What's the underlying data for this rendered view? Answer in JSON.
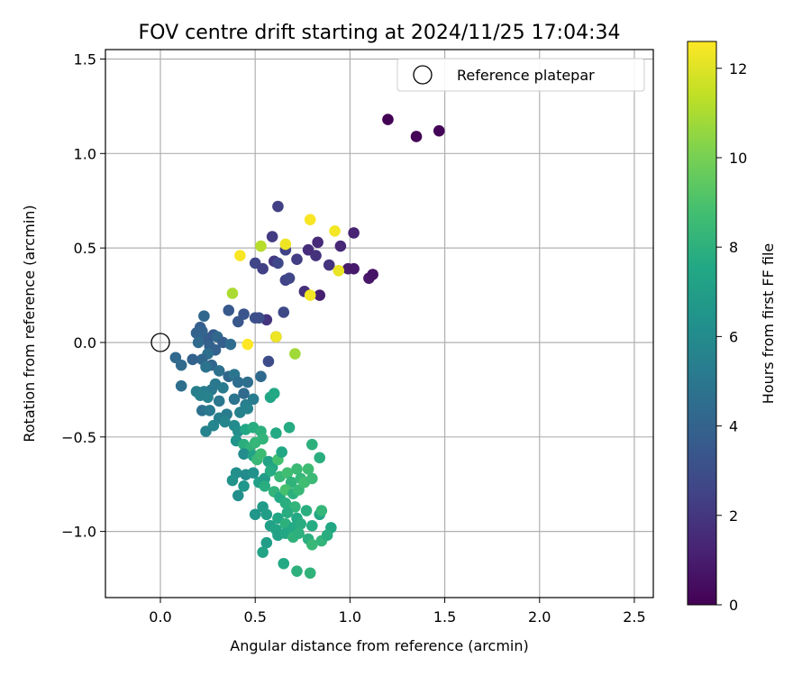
{
  "chart_data": {
    "type": "scatter",
    "title": "FOV centre drift starting at 2024/11/25 17:04:34",
    "xlabel": "Angular distance from reference (arcmin)",
    "ylabel": "Rotation from reference (arcmin)",
    "xlim": [
      -0.29,
      2.6
    ],
    "ylim": [
      -1.35,
      1.55
    ],
    "xticks": [
      0.0,
      0.5,
      1.0,
      1.5,
      2.0,
      2.5
    ],
    "xtick_labels": [
      "0.0",
      "0.5",
      "1.0",
      "1.5",
      "2.0",
      "2.5"
    ],
    "yticks": [
      -1.0,
      -0.5,
      0.0,
      0.5,
      1.0,
      1.5
    ],
    "ytick_labels": [
      "−1.0",
      "−0.5",
      "0.0",
      "0.5",
      "1.0",
      "1.5"
    ],
    "grid": true,
    "legend": {
      "position": "top-right",
      "entries": [
        "Reference platepar"
      ]
    },
    "reference_point": {
      "x": 0.0,
      "y": 0.0
    },
    "colorbar": {
      "label": "Hours from first FF file",
      "min": 0,
      "max": 12.6,
      "colormap": "viridis",
      "ticks": [
        0,
        2,
        4,
        6,
        8,
        10,
        12
      ],
      "tick_labels": [
        "0",
        "2",
        "4",
        "6",
        "8",
        "10",
        "12"
      ]
    },
    "points": [
      {
        "x": 1.2,
        "y": 1.18,
        "c": 0.05
      },
      {
        "x": 1.35,
        "y": 1.09,
        "c": 0.1
      },
      {
        "x": 1.47,
        "y": 1.12,
        "c": 0.15
      },
      {
        "x": 1.02,
        "y": 0.58,
        "c": 1.2
      },
      {
        "x": 0.95,
        "y": 0.51,
        "c": 1.4
      },
      {
        "x": 0.83,
        "y": 0.53,
        "c": 1.5
      },
      {
        "x": 0.78,
        "y": 0.49,
        "c": 1.6
      },
      {
        "x": 0.82,
        "y": 0.46,
        "c": 1.8
      },
      {
        "x": 0.89,
        "y": 0.41,
        "c": 1.9
      },
      {
        "x": 0.99,
        "y": 0.39,
        "c": 1.0
      },
      {
        "x": 1.02,
        "y": 0.39,
        "c": 0.9
      },
      {
        "x": 1.1,
        "y": 0.34,
        "c": 0.8
      },
      {
        "x": 1.12,
        "y": 0.36,
        "c": 0.7
      },
      {
        "x": 0.84,
        "y": 0.25,
        "c": 1.1
      },
      {
        "x": 0.76,
        "y": 0.27,
        "c": 1.7
      },
      {
        "x": 0.62,
        "y": 0.72,
        "c": 2.4
      },
      {
        "x": 0.59,
        "y": 0.56,
        "c": 2.2
      },
      {
        "x": 0.66,
        "y": 0.49,
        "c": 2.5
      },
      {
        "x": 0.72,
        "y": 0.44,
        "c": 2.3
      },
      {
        "x": 0.5,
        "y": 0.42,
        "c": 2.6
      },
      {
        "x": 0.54,
        "y": 0.39,
        "c": 2.4
      },
      {
        "x": 0.6,
        "y": 0.43,
        "c": 2.1
      },
      {
        "x": 0.62,
        "y": 0.42,
        "c": 2.7
      },
      {
        "x": 0.66,
        "y": 0.33,
        "c": 2.5
      },
      {
        "x": 0.68,
        "y": 0.34,
        "c": 2.6
      },
      {
        "x": 0.65,
        "y": 0.16,
        "c": 2.8
      },
      {
        "x": 0.56,
        "y": 0.12,
        "c": 1.9
      },
      {
        "x": 0.61,
        "y": 0.03,
        "c": 3.2
      },
      {
        "x": 0.57,
        "y": -0.1,
        "c": 2.9
      },
      {
        "x": 0.5,
        "y": 0.13,
        "c": 3.1
      },
      {
        "x": 0.52,
        "y": 0.13,
        "c": 3.0
      },
      {
        "x": 0.44,
        "y": 0.15,
        "c": 3.3
      },
      {
        "x": 0.41,
        "y": 0.11,
        "c": 3.4
      },
      {
        "x": 0.36,
        "y": 0.17,
        "c": 3.5
      },
      {
        "x": 0.21,
        "y": 0.08,
        "c": 3.8
      },
      {
        "x": 0.23,
        "y": 0.14,
        "c": 4.2
      },
      {
        "x": 0.22,
        "y": 0.06,
        "c": 3.9
      },
      {
        "x": 0.19,
        "y": 0.05,
        "c": 4.0
      },
      {
        "x": 0.23,
        "y": 0.03,
        "c": 4.1
      },
      {
        "x": 0.25,
        "y": 0.01,
        "c": 3.7
      },
      {
        "x": 0.28,
        "y": 0.04,
        "c": 3.6
      },
      {
        "x": 0.3,
        "y": 0.03,
        "c": 4.3
      },
      {
        "x": 0.2,
        "y": 0.0,
        "c": 4.4
      },
      {
        "x": 0.26,
        "y": -0.02,
        "c": 4.0
      },
      {
        "x": 0.29,
        "y": -0.04,
        "c": 3.9
      },
      {
        "x": 0.33,
        "y": 0.0,
        "c": 3.8
      },
      {
        "x": 0.37,
        "y": -0.01,
        "c": 4.5
      },
      {
        "x": 0.25,
        "y": -0.06,
        "c": 4.6
      },
      {
        "x": 0.22,
        "y": -0.09,
        "c": 4.2
      },
      {
        "x": 0.17,
        "y": -0.09,
        "c": 4.0
      },
      {
        "x": 0.08,
        "y": -0.08,
        "c": 4.3
      },
      {
        "x": 0.11,
        "y": -0.12,
        "c": 4.4
      },
      {
        "x": 0.27,
        "y": -0.12,
        "c": 4.1
      },
      {
        "x": 0.31,
        "y": -0.15,
        "c": 4.7
      },
      {
        "x": 0.24,
        "y": -0.13,
        "c": 4.8
      },
      {
        "x": 0.36,
        "y": -0.18,
        "c": 4.2
      },
      {
        "x": 0.39,
        "y": -0.17,
        "c": 4.9
      },
      {
        "x": 0.41,
        "y": -0.21,
        "c": 4.5
      },
      {
        "x": 0.46,
        "y": -0.21,
        "c": 4.6
      },
      {
        "x": 0.53,
        "y": -0.18,
        "c": 4.3
      },
      {
        "x": 0.29,
        "y": -0.22,
        "c": 5.0
      },
      {
        "x": 0.33,
        "y": -0.24,
        "c": 5.2
      },
      {
        "x": 0.27,
        "y": -0.25,
        "c": 5.1
      },
      {
        "x": 0.23,
        "y": -0.26,
        "c": 5.3
      },
      {
        "x": 0.19,
        "y": -0.26,
        "c": 5.4
      },
      {
        "x": 0.21,
        "y": -0.28,
        "c": 5.5
      },
      {
        "x": 0.25,
        "y": -0.29,
        "c": 5.6
      },
      {
        "x": 0.11,
        "y": -0.23,
        "c": 4.6
      },
      {
        "x": 0.31,
        "y": -0.31,
        "c": 5.0
      },
      {
        "x": 0.44,
        "y": -0.27,
        "c": 4.4
      },
      {
        "x": 0.39,
        "y": -0.3,
        "c": 4.8
      },
      {
        "x": 0.49,
        "y": -0.3,
        "c": 5.2
      },
      {
        "x": 0.45,
        "y": -0.33,
        "c": 5.3
      },
      {
        "x": 0.22,
        "y": -0.36,
        "c": 4.7
      },
      {
        "x": 0.26,
        "y": -0.36,
        "c": 5.1
      },
      {
        "x": 0.31,
        "y": -0.4,
        "c": 5.4
      },
      {
        "x": 0.35,
        "y": -0.38,
        "c": 5.2
      },
      {
        "x": 0.42,
        "y": -0.37,
        "c": 5.5
      },
      {
        "x": 0.46,
        "y": -0.35,
        "c": 5.6
      },
      {
        "x": 0.58,
        "y": -0.29,
        "c": 7.4
      },
      {
        "x": 0.6,
        "y": -0.27,
        "c": 7.6
      },
      {
        "x": 0.28,
        "y": -0.44,
        "c": 5.8
      },
      {
        "x": 0.34,
        "y": -0.42,
        "c": 5.7
      },
      {
        "x": 0.39,
        "y": -0.44,
        "c": 6.0
      },
      {
        "x": 0.24,
        "y": -0.47,
        "c": 5.6
      },
      {
        "x": 0.41,
        "y": -0.47,
        "c": 6.2
      },
      {
        "x": 0.45,
        "y": -0.46,
        "c": 7.5
      },
      {
        "x": 0.49,
        "y": -0.45,
        "c": 7.8
      },
      {
        "x": 0.53,
        "y": -0.47,
        "c": 8.0
      },
      {
        "x": 0.4,
        "y": -0.52,
        "c": 6.5
      },
      {
        "x": 0.44,
        "y": -0.54,
        "c": 7.9
      },
      {
        "x": 0.47,
        "y": -0.56,
        "c": 8.1
      },
      {
        "x": 0.5,
        "y": -0.53,
        "c": 8.3
      },
      {
        "x": 0.54,
        "y": -0.51,
        "c": 8.2
      },
      {
        "x": 0.61,
        "y": -0.48,
        "c": 7.6
      },
      {
        "x": 0.68,
        "y": -0.45,
        "c": 7.7
      },
      {
        "x": 0.44,
        "y": -0.59,
        "c": 6.1
      },
      {
        "x": 0.49,
        "y": -0.6,
        "c": 7.2
      },
      {
        "x": 0.51,
        "y": -0.62,
        "c": 8.4
      },
      {
        "x": 0.53,
        "y": -0.59,
        "c": 8.6
      },
      {
        "x": 0.57,
        "y": -0.63,
        "c": 7.3
      },
      {
        "x": 0.59,
        "y": -0.66,
        "c": 7.4
      },
      {
        "x": 0.62,
        "y": -0.62,
        "c": 8.8
      },
      {
        "x": 0.64,
        "y": -0.58,
        "c": 7.5
      },
      {
        "x": 0.8,
        "y": -0.54,
        "c": 8.0
      },
      {
        "x": 0.84,
        "y": -0.61,
        "c": 7.9
      },
      {
        "x": 0.4,
        "y": -0.69,
        "c": 6.2
      },
      {
        "x": 0.45,
        "y": -0.7,
        "c": 6.0
      },
      {
        "x": 0.49,
        "y": -0.69,
        "c": 6.3
      },
      {
        "x": 0.52,
        "y": -0.74,
        "c": 7.1
      },
      {
        "x": 0.55,
        "y": -0.72,
        "c": 6.9
      },
      {
        "x": 0.58,
        "y": -0.68,
        "c": 7.7
      },
      {
        "x": 0.63,
        "y": -0.71,
        "c": 8.4
      },
      {
        "x": 0.67,
        "y": -0.69,
        "c": 8.7
      },
      {
        "x": 0.69,
        "y": -0.74,
        "c": 8.1
      },
      {
        "x": 0.72,
        "y": -0.67,
        "c": 8.5
      },
      {
        "x": 0.74,
        "y": -0.72,
        "c": 8.3
      },
      {
        "x": 0.78,
        "y": -0.67,
        "c": 8.6
      },
      {
        "x": 0.38,
        "y": -0.73,
        "c": 6.4
      },
      {
        "x": 0.44,
        "y": -0.76,
        "c": 6.6
      },
      {
        "x": 0.41,
        "y": -0.81,
        "c": 6.2
      },
      {
        "x": 0.55,
        "y": -0.76,
        "c": 7.8
      },
      {
        "x": 0.6,
        "y": -0.79,
        "c": 8.2
      },
      {
        "x": 0.63,
        "y": -0.82,
        "c": 7.6
      },
      {
        "x": 0.66,
        "y": -0.78,
        "c": 8.9
      },
      {
        "x": 0.7,
        "y": -0.8,
        "c": 8.0
      },
      {
        "x": 0.73,
        "y": -0.78,
        "c": 8.4
      },
      {
        "x": 0.76,
        "y": -0.74,
        "c": 8.7
      },
      {
        "x": 0.8,
        "y": -0.72,
        "c": 8.5
      },
      {
        "x": 0.66,
        "y": -0.85,
        "c": 7.9
      },
      {
        "x": 0.71,
        "y": -0.87,
        "c": 8.2
      },
      {
        "x": 0.54,
        "y": -0.87,
        "c": 6.8
      },
      {
        "x": 0.56,
        "y": -0.91,
        "c": 7.0
      },
      {
        "x": 0.5,
        "y": -0.91,
        "c": 6.6
      },
      {
        "x": 0.62,
        "y": -0.93,
        "c": 7.5
      },
      {
        "x": 0.67,
        "y": -0.9,
        "c": 7.8
      },
      {
        "x": 0.72,
        "y": -0.93,
        "c": 7.6
      },
      {
        "x": 0.77,
        "y": -0.89,
        "c": 7.9
      },
      {
        "x": 0.84,
        "y": -0.91,
        "c": 7.4
      },
      {
        "x": 0.85,
        "y": -0.89,
        "c": 8.3
      },
      {
        "x": 0.58,
        "y": -0.97,
        "c": 7.1
      },
      {
        "x": 0.61,
        "y": -0.99,
        "c": 7.4
      },
      {
        "x": 0.66,
        "y": -0.96,
        "c": 8.0
      },
      {
        "x": 0.7,
        "y": -0.98,
        "c": 7.6
      },
      {
        "x": 0.74,
        "y": -0.96,
        "c": 7.8
      },
      {
        "x": 0.8,
        "y": -0.97,
        "c": 7.7
      },
      {
        "x": 0.62,
        "y": -1.02,
        "c": 7.2
      },
      {
        "x": 0.66,
        "y": -1.01,
        "c": 7.5
      },
      {
        "x": 0.7,
        "y": -1.03,
        "c": 8.1
      },
      {
        "x": 0.73,
        "y": -1.01,
        "c": 8.0
      },
      {
        "x": 0.78,
        "y": -1.04,
        "c": 7.9
      },
      {
        "x": 0.8,
        "y": -1.07,
        "c": 8.4
      },
      {
        "x": 0.85,
        "y": -1.05,
        "c": 8.2
      },
      {
        "x": 0.56,
        "y": -1.06,
        "c": 7.0
      },
      {
        "x": 0.54,
        "y": -1.11,
        "c": 7.3
      },
      {
        "x": 0.65,
        "y": -1.17,
        "c": 7.6
      },
      {
        "x": 0.72,
        "y": -1.21,
        "c": 8.0
      },
      {
        "x": 0.79,
        "y": -1.22,
        "c": 8.1
      },
      {
        "x": 0.9,
        "y": -0.98,
        "c": 7.5
      },
      {
        "x": 0.88,
        "y": -1.02,
        "c": 7.8
      },
      {
        "x": 0.79,
        "y": 0.65,
        "c": 12.5
      },
      {
        "x": 0.92,
        "y": 0.59,
        "c": 12.4
      },
      {
        "x": 0.66,
        "y": 0.52,
        "c": 12.3
      },
      {
        "x": 0.53,
        "y": 0.51,
        "c": 11.2
      },
      {
        "x": 0.42,
        "y": 0.46,
        "c": 12.5
      },
      {
        "x": 0.94,
        "y": 0.38,
        "c": 12.2
      },
      {
        "x": 0.38,
        "y": 0.26,
        "c": 11.0
      },
      {
        "x": 0.79,
        "y": 0.25,
        "c": 12.4
      },
      {
        "x": 0.46,
        "y": -0.01,
        "c": 12.6
      },
      {
        "x": 0.61,
        "y": 0.03,
        "c": 12.3
      },
      {
        "x": 0.71,
        "y": -0.06,
        "c": 10.8
      }
    ]
  }
}
